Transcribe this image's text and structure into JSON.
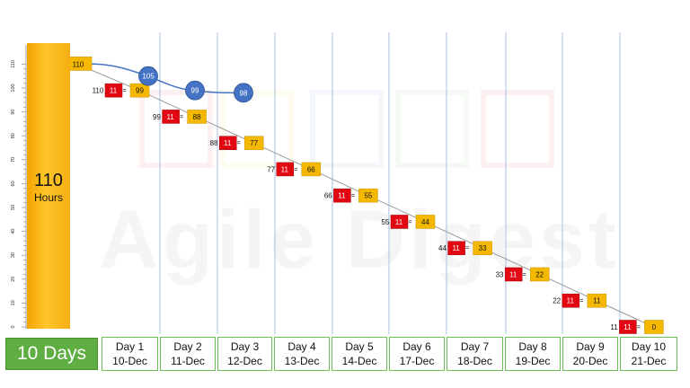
{
  "chart_data": {
    "type": "line",
    "y_axis": {
      "min": 0,
      "max": 110,
      "step": 10,
      "ticks": [
        0,
        10,
        20,
        30,
        40,
        50,
        60,
        70,
        80,
        90,
        100,
        110
      ]
    },
    "total": {
      "value": "110",
      "unit": "Hours"
    },
    "duration_label": "10 Days",
    "days": [
      {
        "label": "Day 1",
        "date": "10-Dec"
      },
      {
        "label": "Day 2",
        "date": "11-Dec"
      },
      {
        "label": "Day 3",
        "date": "12-Dec"
      },
      {
        "label": "Day 4",
        "date": "13-Dec"
      },
      {
        "label": "Day 5",
        "date": "14-Dec"
      },
      {
        "label": "Day 6",
        "date": "17-Dec"
      },
      {
        "label": "Day 7",
        "date": "18-Dec"
      },
      {
        "label": "Day 8",
        "date": "19-Dec"
      },
      {
        "label": "Day 9",
        "date": "20-Dec"
      },
      {
        "label": "Day 10",
        "date": "21-Dec"
      }
    ],
    "ideal_series": {
      "start": 110,
      "burn_per_day": 11,
      "remaining": [
        99,
        88,
        77,
        66,
        55,
        44,
        33,
        22,
        11,
        0
      ],
      "before": [
        110,
        99,
        88,
        77,
        66,
        55,
        44,
        33,
        22,
        11
      ]
    },
    "actual_series": {
      "values": [
        110,
        105,
        99,
        98
      ]
    },
    "colors": {
      "remaining": "#f5b800",
      "burn": "#e30613",
      "actual": "#4472c4",
      "total_bar": "#f5ad10",
      "days_box": "#5fae43",
      "gridline": "#a9bfe0"
    }
  },
  "watermark": "Agile Digest"
}
